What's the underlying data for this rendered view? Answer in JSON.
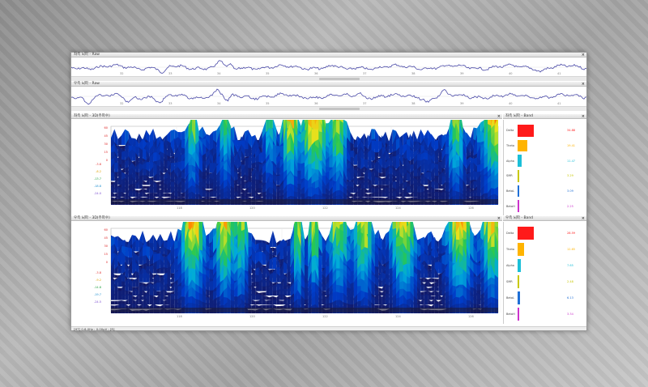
{
  "panels": {
    "raw1_title": "좌측 뇌파 - Raw",
    "raw2_title": "우측 뇌파 - Raw",
    "spec1_title": "좌측 뇌파 - 3D(주파수)",
    "spec2_title": "우측 뇌파 - 3D(주파수)",
    "band1_title": "좌측 뇌파 - Band",
    "band2_title": "우측 뇌파 - Band",
    "close_label": "×"
  },
  "raw_ticks": [
    "32",
    "33",
    "34",
    "35",
    "36",
    "37",
    "38",
    "39",
    "40",
    "41"
  ],
  "spec_ticks": [
    "118",
    "120",
    "122",
    "124",
    "126"
  ],
  "spec1_ylabels": [
    "-3.8",
    "-8.2",
    "-13.7",
    "-18.8",
    "-24.0"
  ],
  "spec2_ylabels": [
    "-3.8",
    "-9.2",
    "-14.8",
    "-19.7",
    "-24.5"
  ],
  "spec_scale": [
    "60",
    "45",
    "30",
    "15",
    "0"
  ],
  "bands": {
    "left": [
      {
        "name": "Delta",
        "value": "34.88",
        "color": "#ff1a1a",
        "frac": 1.0
      },
      {
        "name": "Theta",
        "value": "19.41",
        "color": "#ffb400",
        "frac": 0.6
      },
      {
        "name": "Alpha",
        "value": "11.47",
        "color": "#1bbfd8",
        "frac": 0.25
      },
      {
        "name": "SMR",
        "value": "3.29",
        "color": "#c8c800",
        "frac": 0.08
      },
      {
        "name": "BetaL",
        "value": "3.09",
        "color": "#1f6fd6",
        "frac": 0.07
      },
      {
        "name": "BetaH",
        "value": "2.25",
        "color": "#cc33cc",
        "frac": 0.05
      }
    ],
    "right": [
      {
        "name": "Delta",
        "value": "28.59",
        "color": "#ff1a1a",
        "frac": 1.0
      },
      {
        "name": "Theta",
        "value": "12.65",
        "color": "#ffb400",
        "frac": 0.42
      },
      {
        "name": "Alpha",
        "value": "7.65",
        "color": "#1bbfd8",
        "frac": 0.2
      },
      {
        "name": "SMR",
        "value": "2.48",
        "color": "#c8c800",
        "frac": 0.07
      },
      {
        "name": "BetaL",
        "value": "6.13",
        "color": "#1f6fd6",
        "frac": 0.14
      },
      {
        "name": "BetaH",
        "value": "3.34",
        "color": "#cc33cc",
        "frac": 0.08
      }
    ]
  },
  "status_text": "[HT] 0.6-0Hz : 0.00μV : [R]"
}
